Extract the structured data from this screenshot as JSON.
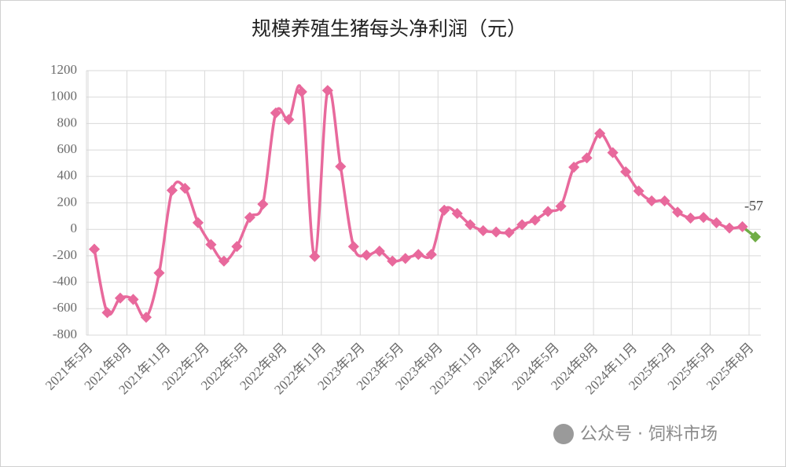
{
  "chart_data": {
    "type": "line",
    "title": "规模养殖生猪每头净利润（元）",
    "categories": [
      "2021年5月",
      null,
      null,
      "2021年8月",
      null,
      null,
      "2021年11月",
      null,
      null,
      "2022年2月",
      null,
      null,
      "2022年5月",
      null,
      null,
      "2022年8月",
      null,
      null,
      "2022年11月",
      null,
      null,
      "2023年2月",
      null,
      null,
      "2023年5月",
      null,
      null,
      "2023年8月",
      null,
      null,
      "2023年11月",
      null,
      null,
      "2024年2月",
      null,
      null,
      "2024年5月",
      null,
      null,
      "2024年8月",
      null,
      null,
      "2024年11月",
      null,
      null,
      "2025年2月",
      null,
      null,
      "2025年5月",
      null,
      null,
      "2025年8月"
    ],
    "series": [
      {
        "name": "规模养殖生猪每头净利润",
        "color": "#e8699c",
        "last_point_color": "#70ad47",
        "values": [
          -150,
          -630,
          -520,
          -530,
          -665,
          -330,
          295,
          310,
          50,
          -115,
          -240,
          -130,
          90,
          190,
          880,
          830,
          1040,
          -205,
          1050,
          475,
          -130,
          -195,
          -165,
          -240,
          -220,
          -190,
          -190,
          145,
          120,
          35,
          -10,
          -20,
          -25,
          35,
          70,
          135,
          175,
          470,
          540,
          725,
          580,
          435,
          290,
          215,
          215,
          130,
          85,
          90,
          50,
          10,
          20,
          -57
        ]
      }
    ],
    "labeled_index": 51,
    "ylim": [
      -800,
      1200
    ],
    "yticks": [
      -800,
      -600,
      -400,
      -200,
      0,
      200,
      400,
      600,
      800,
      1000,
      1200
    ],
    "grid": true,
    "watermark": "公众号 · 饲料市场"
  }
}
